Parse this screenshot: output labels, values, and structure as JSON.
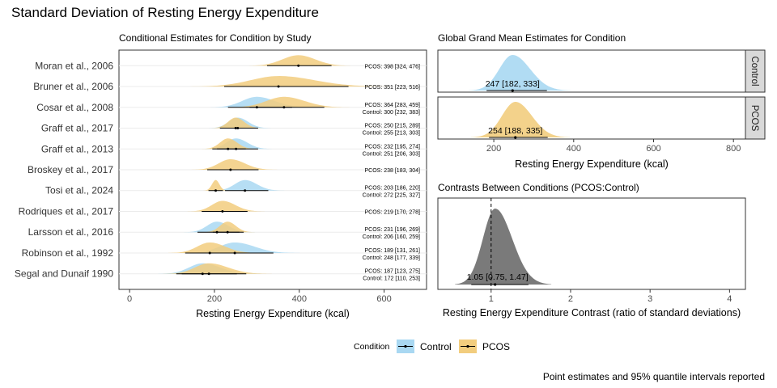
{
  "title": "Standard Deviation of Resting Energy Expenditure",
  "caption": "Point estimates and 95% quantile intervals reported",
  "colors": {
    "Control": "#a9d8f2",
    "PCOS": "#f2cd7e",
    "contrast": "#7a7a7a"
  },
  "legend": {
    "title": "Condition",
    "items": [
      "Control",
      "PCOS"
    ]
  },
  "chart_data": [
    {
      "id": "by-study",
      "type": "halfeye",
      "title": "Conditional Estimates for Condition by Study",
      "xlabel": "Resting Energy Expenditure (kcal)",
      "xlim": [
        -25,
        700
      ],
      "xticks": [
        0,
        200,
        400,
        600
      ],
      "grid": true,
      "studies": [
        {
          "name": "Moran et al., 2006",
          "PCOS": {
            "est": 398,
            "lo": 324,
            "hi": 476,
            "label": "PCOS: 398 [324, 476]"
          }
        },
        {
          "name": "Bruner et al., 2006",
          "PCOS": {
            "est": 351,
            "lo": 223,
            "hi": 516,
            "label": "PCOS: 351 [223, 516]"
          }
        },
        {
          "name": "Cosar et al., 2008",
          "PCOS": {
            "est": 364,
            "lo": 283,
            "hi": 459,
            "label": "PCOS: 364 [283, 459]"
          },
          "Control": {
            "est": 300,
            "lo": 232,
            "hi": 383,
            "label": "Control: 300 [232, 383]"
          }
        },
        {
          "name": "Graff et al., 2017",
          "PCOS": {
            "est": 250,
            "lo": 215,
            "hi": 289,
            "label": "PCOS: 250 [215, 289]"
          },
          "Control": {
            "est": 255,
            "lo": 213,
            "hi": 303,
            "label": "Control: 255 [213, 303]"
          }
        },
        {
          "name": "Graff et al., 2013",
          "PCOS": {
            "est": 232,
            "lo": 195,
            "hi": 274,
            "label": "PCOS: 232 [195, 274]"
          },
          "Control": {
            "est": 251,
            "lo": 206,
            "hi": 303,
            "label": "Control: 251 [206, 303]"
          }
        },
        {
          "name": "Broskey et al., 2017",
          "PCOS": {
            "est": 238,
            "lo": 183,
            "hi": 304,
            "label": "PCOS: 238 [183, 304]"
          }
        },
        {
          "name": "Tosi et al., 2024",
          "PCOS": {
            "est": 203,
            "lo": 186,
            "hi": 220,
            "label": "PCOS: 203 [186, 220]"
          },
          "Control": {
            "est": 272,
            "lo": 225,
            "hi": 327,
            "label": "Control: 272 [225, 327]"
          }
        },
        {
          "name": "Rodriques et al., 2017",
          "PCOS": {
            "est": 219,
            "lo": 170,
            "hi": 278,
            "label": "PCOS: 219 [170, 278]"
          }
        },
        {
          "name": "Larsson et al., 2016",
          "PCOS": {
            "est": 231,
            "lo": 196,
            "hi": 269,
            "label": "PCOS: 231 [196, 269]"
          },
          "Control": {
            "est": 206,
            "lo": 160,
            "hi": 259,
            "label": "Control: 206 [160, 259]"
          }
        },
        {
          "name": "Robinson et al., 1992",
          "PCOS": {
            "est": 189,
            "lo": 131,
            "hi": 261,
            "label": "PCOS: 189 [131, 261]"
          },
          "Control": {
            "est": 248,
            "lo": 177,
            "hi": 339,
            "label": "Control: 248 [177, 339]"
          }
        },
        {
          "name": "Segal and Dunaif 1990",
          "PCOS": {
            "est": 187,
            "lo": 123,
            "hi": 275,
            "label": "PCOS: 187 [123, 275]"
          },
          "Control": {
            "est": 172,
            "lo": 110,
            "hi": 253,
            "label": "Control: 172 [110, 253]"
          }
        }
      ]
    },
    {
      "id": "grand-mean",
      "type": "halfeye",
      "title": "Global Grand Mean Estimates for Condition",
      "xlabel": "Resting Energy Expenditure (kcal)",
      "xlim": [
        60,
        830
      ],
      "xticks": [
        200,
        400,
        600,
        800
      ],
      "facets": [
        {
          "strip": "Control",
          "condition": "Control",
          "est": 247,
          "lo": 182,
          "hi": 333,
          "label": "247 [182, 333]"
        },
        {
          "strip": "PCOS",
          "condition": "PCOS",
          "est": 254,
          "lo": 188,
          "hi": 335,
          "label": "254 [188, 335]"
        }
      ]
    },
    {
      "id": "contrast",
      "type": "halfeye",
      "title": "Contrasts Between Conditions (PCOS:Control)",
      "xlabel": "Resting Energy Expenditure Contrast (ratio of standard deviations)",
      "xlim": [
        0.33,
        4.2
      ],
      "xticks": [
        1,
        2,
        3,
        4
      ],
      "reference_line": 1,
      "est": 1.05,
      "lo": 0.75,
      "hi": 1.47,
      "label": "1.05 [0.75, 1.47]"
    }
  ]
}
